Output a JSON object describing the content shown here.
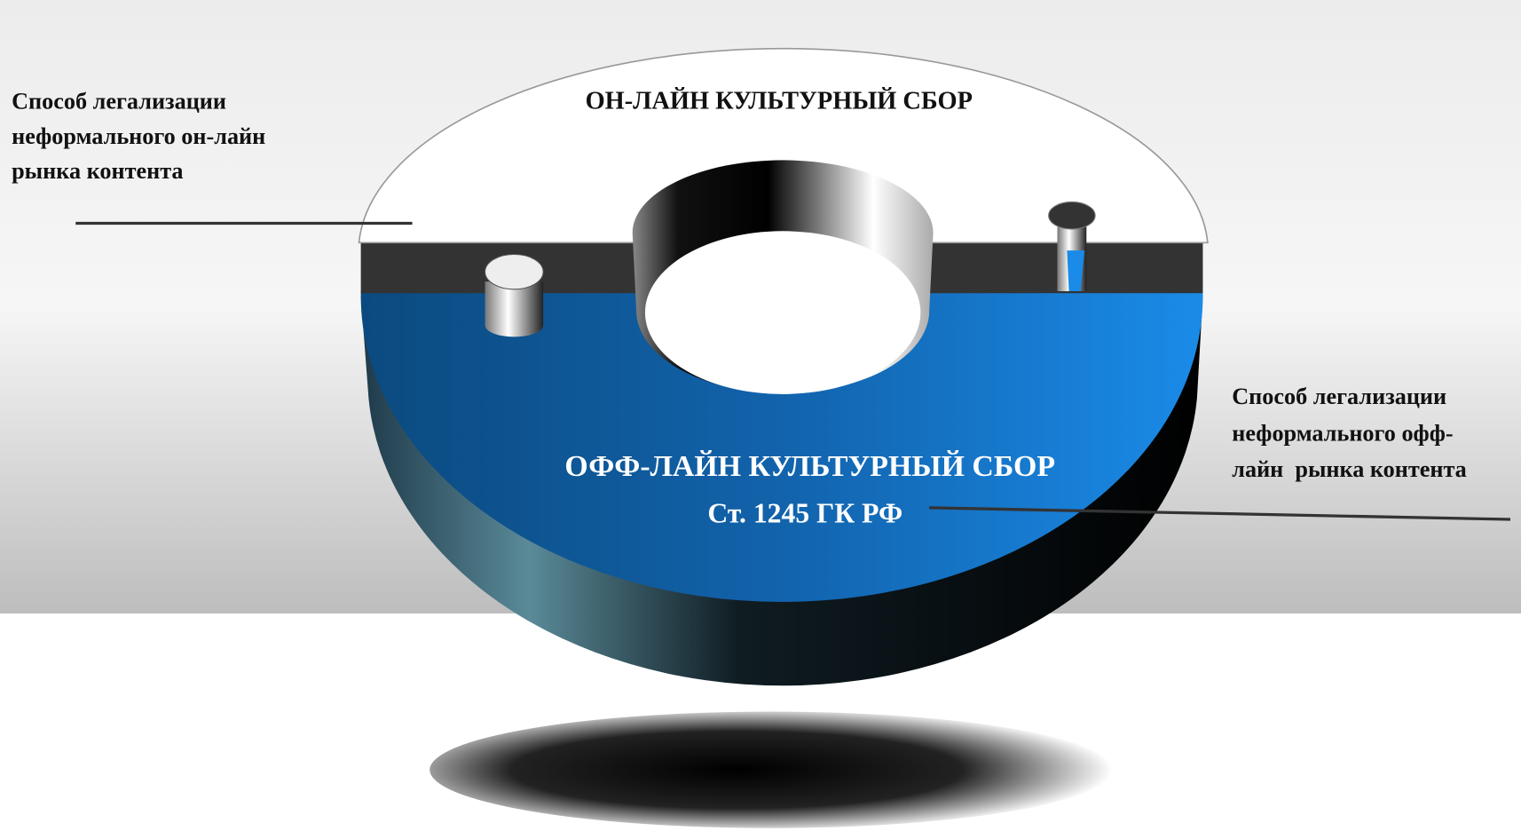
{
  "left_note": {
    "lines": [
      "Способ легализации",
      "неформального он-лайн",
      "рынка контента"
    ]
  },
  "disk": {
    "online_title": "ОН-ЛАЙН КУЛЬТУРНЫЙ СБОР",
    "offline_title": "ОФФ-ЛАЙН КУЛЬТУРНЫЙ СБОР",
    "offline_article": "Ст. 1245 ГК РФ"
  },
  "right_note": {
    "lines": [
      "Способ легализации",
      "неформального офф-",
      "лайн  рынка контента"
    ]
  }
}
